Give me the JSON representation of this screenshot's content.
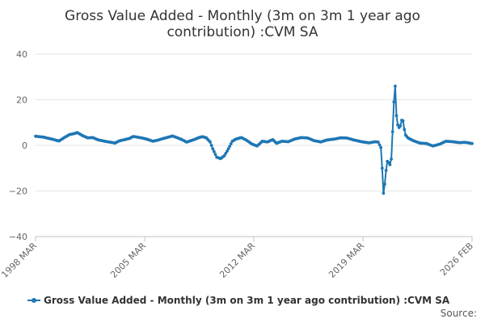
{
  "chart_data": {
    "type": "line",
    "title_lines": [
      "Gross Value Added - Monthly (3m on 3m 1 year ago",
      "contribution) :CVM SA"
    ],
    "xlabel": "",
    "ylabel": "",
    "x_tick_labels": [
      "1998 MAR",
      "2005 MAR",
      "2012 MAR",
      "2019 MAR",
      "2026 FEB"
    ],
    "y_tick_labels": [
      "40",
      "20",
      "0",
      "−20",
      "−40"
    ],
    "xlim": [
      "1998-03",
      "2026-02"
    ],
    "ylim": [
      -40,
      40
    ],
    "grid": true,
    "legend_position": "bottom",
    "source": "Source:",
    "series": [
      {
        "name": "Gross Value Added - Monthly (3m on 3m 1 year ago contribution) :CVM SA",
        "color": "#1f77b4",
        "points": [
          [
            "1998-03",
            4.0
          ],
          [
            "1998-09",
            3.6
          ],
          [
            "1999-03",
            2.8
          ],
          [
            "1999-09",
            1.9
          ],
          [
            "2000-01",
            3.4
          ],
          [
            "2000-05",
            4.7
          ],
          [
            "2000-09",
            5.2
          ],
          [
            "2000-11",
            5.6
          ],
          [
            "2001-03",
            4.3
          ],
          [
            "2001-07",
            3.3
          ],
          [
            "2001-11",
            3.4
          ],
          [
            "2002-03",
            2.4
          ],
          [
            "2002-09",
            1.7
          ],
          [
            "2003-01",
            1.3
          ],
          [
            "2003-04",
            1.0
          ],
          [
            "2003-07",
            1.9
          ],
          [
            "2003-12",
            2.6
          ],
          [
            "2004-03",
            3.0
          ],
          [
            "2004-06",
            3.9
          ],
          [
            "2004-09",
            3.6
          ],
          [
            "2005-01",
            3.2
          ],
          [
            "2005-05",
            2.6
          ],
          [
            "2005-09",
            1.8
          ],
          [
            "2006-01",
            2.3
          ],
          [
            "2006-05",
            3.0
          ],
          [
            "2006-09",
            3.6
          ],
          [
            "2006-12",
            4.1
          ],
          [
            "2007-03",
            3.5
          ],
          [
            "2007-07",
            2.6
          ],
          [
            "2007-11",
            1.4
          ],
          [
            "2008-02",
            2.0
          ],
          [
            "2008-05",
            2.6
          ],
          [
            "2008-08",
            3.3
          ],
          [
            "2008-11",
            3.8
          ],
          [
            "2009-02",
            3.3
          ],
          [
            "2009-05",
            1.5
          ],
          [
            "2009-07",
            -1.5
          ],
          [
            "2009-10",
            -5.2
          ],
          [
            "2010-01",
            -5.8
          ],
          [
            "2010-04",
            -4.5
          ],
          [
            "2010-07",
            -1.5
          ],
          [
            "2010-10",
            1.8
          ],
          [
            "2011-01",
            2.8
          ],
          [
            "2011-05",
            3.4
          ],
          [
            "2011-09",
            2.2
          ],
          [
            "2012-01",
            0.6
          ],
          [
            "2012-05",
            -0.3
          ],
          [
            "2012-09",
            1.8
          ],
          [
            "2013-01",
            1.5
          ],
          [
            "2013-05",
            2.5
          ],
          [
            "2013-08",
            0.9
          ],
          [
            "2013-12",
            1.8
          ],
          [
            "2014-05",
            1.6
          ],
          [
            "2014-10",
            2.8
          ],
          [
            "2015-03",
            3.4
          ],
          [
            "2015-08",
            3.2
          ],
          [
            "2016-01",
            2.0
          ],
          [
            "2016-06",
            1.5
          ],
          [
            "2016-11",
            2.4
          ],
          [
            "2017-04",
            2.7
          ],
          [
            "2017-09",
            3.3
          ],
          [
            "2018-02",
            3.2
          ],
          [
            "2018-07",
            2.4
          ],
          [
            "2019-01",
            1.6
          ],
          [
            "2019-07",
            1.1
          ],
          [
            "2019-12",
            1.6
          ],
          [
            "2020-02",
            1.4
          ],
          [
            "2020-04",
            -1.0
          ],
          [
            "2020-05",
            -10.0
          ],
          [
            "2020-06",
            -21.0
          ],
          [
            "2020-07",
            -17.0
          ],
          [
            "2020-08",
            -11.0
          ],
          [
            "2020-09",
            -7.0
          ],
          [
            "2020-10",
            -7.5
          ],
          [
            "2020-11",
            -8.5
          ],
          [
            "2020-12",
            -6.0
          ],
          [
            "2021-01",
            6.0
          ],
          [
            "2021-02",
            19.0
          ],
          [
            "2021-03",
            26.0
          ],
          [
            "2021-04",
            13.0
          ],
          [
            "2021-05",
            9.0
          ],
          [
            "2021-06",
            7.8
          ],
          [
            "2021-07",
            8.5
          ],
          [
            "2021-08",
            11.0
          ],
          [
            "2021-09",
            10.8
          ],
          [
            "2021-10",
            7.0
          ],
          [
            "2021-11",
            4.5
          ],
          [
            "2022-01",
            3.2
          ],
          [
            "2022-05",
            2.0
          ],
          [
            "2022-10",
            1.0
          ],
          [
            "2023-03",
            0.8
          ],
          [
            "2023-08",
            -0.3
          ],
          [
            "2024-01",
            0.5
          ],
          [
            "2024-06",
            1.8
          ],
          [
            "2024-11",
            1.6
          ],
          [
            "2025-04",
            1.2
          ],
          [
            "2025-09",
            1.3
          ],
          [
            "2026-02",
            0.8
          ]
        ]
      }
    ]
  }
}
